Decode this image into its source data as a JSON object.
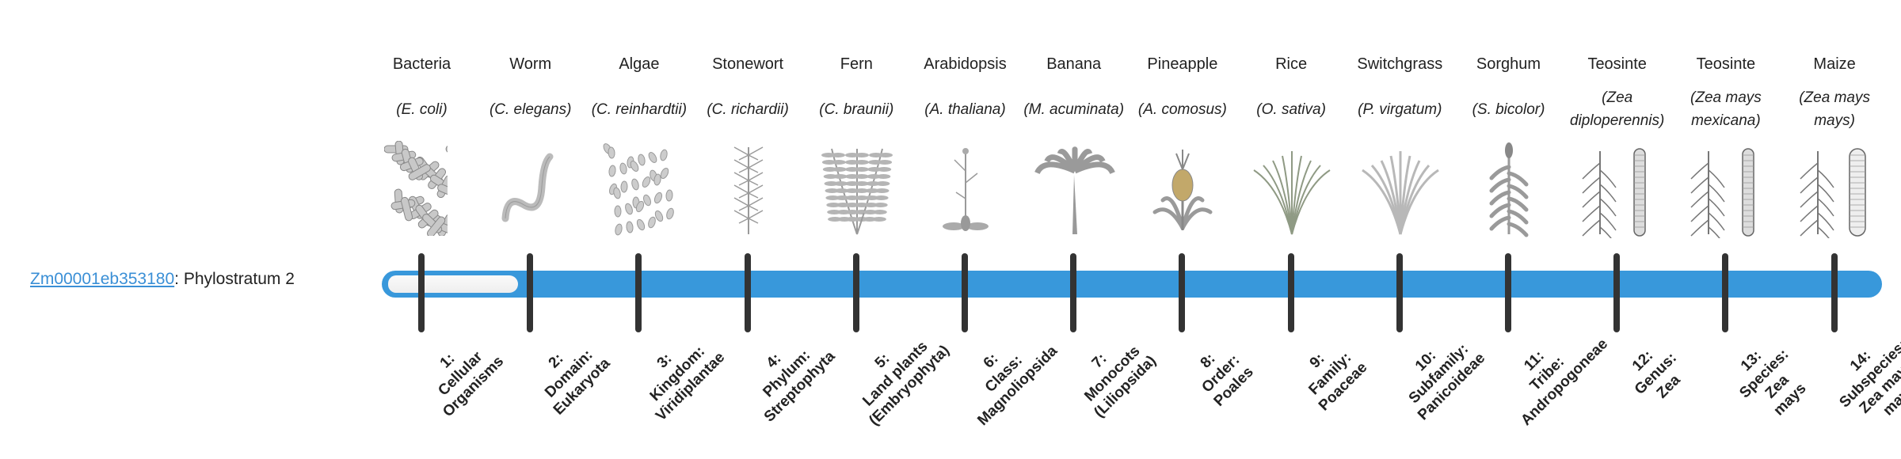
{
  "gene": {
    "id": "Zm00001eb353180",
    "suffix": ": Phylostratum 2"
  },
  "colors": {
    "bar": "#3898db",
    "tick": "#333333",
    "link": "#3a8fd6"
  },
  "progress": {
    "phylostratum": 2,
    "total": 14
  },
  "strata": [
    {
      "common": "Bacteria",
      "sci": "(E. coli)",
      "icon": "bacteria-icon",
      "label": [
        "1:",
        "Cellular",
        "Organisms"
      ]
    },
    {
      "common": "Worm",
      "sci": "(C. elegans)",
      "icon": "worm-icon",
      "label": [
        "2:",
        "Domain:",
        "Eukaryota"
      ]
    },
    {
      "common": "Algae",
      "sci": "(C. reinhardtii)",
      "icon": "algae-icon",
      "label": [
        "3:",
        "Kingdom:",
        "Viridiplantae"
      ]
    },
    {
      "common": "Stonewort",
      "sci": "(C. richardii)",
      "icon": "stonewort-icon",
      "label": [
        "4:",
        "Phylum:",
        "Streptophyta"
      ]
    },
    {
      "common": "Fern",
      "sci": "(C. braunii)",
      "icon": "fern-icon",
      "label": [
        "5:",
        "Land plants",
        "(Embryophyta)"
      ]
    },
    {
      "common": "Arabidopsis",
      "sci": "(A. thaliana)",
      "icon": "arabidopsis-icon",
      "label": [
        "6:",
        "Class:",
        "Magnoliopsida"
      ]
    },
    {
      "common": "Banana",
      "sci": "(M. acuminata)",
      "icon": "banana-icon",
      "label": [
        "7:",
        "Monocots",
        "(Liliopsida)"
      ]
    },
    {
      "common": "Pineapple",
      "sci": "(A. comosus)",
      "icon": "pineapple-icon",
      "label": [
        "8:",
        "Order:",
        "Poales"
      ]
    },
    {
      "common": "Rice",
      "sci": "(O. sativa)",
      "icon": "rice-icon",
      "label": [
        "9:",
        "Family:",
        "Poaceae"
      ]
    },
    {
      "common": "Switchgrass",
      "sci": "(P. virgatum)",
      "icon": "switchgrass-icon",
      "label": [
        "10:",
        "Subfamily:",
        "Panicoideae"
      ]
    },
    {
      "common": "Sorghum",
      "sci": "(S. bicolor)",
      "icon": "sorghum-icon",
      "label": [
        "11:",
        "Tribe:",
        "Andropogoneae"
      ]
    },
    {
      "common": "Teosinte",
      "sci": "(Zea diploperennis)",
      "icon": "teosinte-icon",
      "label": [
        "12:",
        "Genus:",
        "Zea"
      ]
    },
    {
      "common": "Teosinte",
      "sci": "(Zea mays mexicana)",
      "icon": "teosinte-mexicana-icon",
      "label": [
        "13:",
        "Species:",
        "Zea",
        "mays"
      ]
    },
    {
      "common": "Maize",
      "sci": "(Zea mays mays)",
      "icon": "maize-icon",
      "label": [
        "14:",
        "Subspecies:",
        "Zea mays",
        "mays"
      ]
    }
  ]
}
